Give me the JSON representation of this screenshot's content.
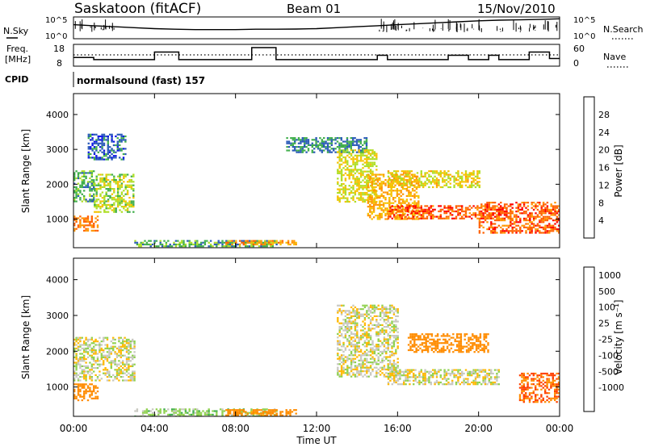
{
  "header": {
    "station": "Saskatoon (fitACF)",
    "beam": "Beam 01",
    "date": "15/Nov/2010"
  },
  "noise_panel": {
    "left_label": "N.Sky",
    "right_label": "N.Search",
    "left_ticks": [
      "10^5",
      "10^0"
    ],
    "right_ticks": [
      "10^5",
      "10^0"
    ]
  },
  "freq_panel": {
    "left_label_1": "Freq.",
    "left_label_2": "[MHz]",
    "right_label": "Nave",
    "left_ticks": [
      "18",
      "8"
    ],
    "right_ticks": [
      "60",
      "0"
    ]
  },
  "cpid": {
    "label": "CPID",
    "program": "normalsound (fast) 157"
  },
  "power_colorbar": {
    "title": "Power [dB]",
    "ticks": [
      "28",
      "24",
      "20",
      "16",
      "12",
      "8",
      "4"
    ],
    "colors": [
      "#ff0000",
      "#ff6000",
      "#ff9600",
      "#f5c200",
      "#aede25",
      "#3fae4b",
      "#2a5ab8",
      "#0a14e6"
    ]
  },
  "velocity_colorbar": {
    "title": "Velocity [m s⁻¹]",
    "ticks": [
      "1000",
      "500",
      "100",
      "25",
      "-25",
      "-100",
      "-500",
      "-1000"
    ],
    "colors": [
      "#1f3cb0",
      "#2e8b57",
      "#3fae4b",
      "#8fd14f",
      "#c8c8c0",
      "#ffb800",
      "#ff8c00",
      "#ff4000",
      "#ff0000"
    ]
  },
  "chart_data": [
    {
      "type": "heatmap",
      "name": "Power",
      "ylabel": "Slant Range [km]",
      "xlabel": "Time UT",
      "x_ticks": [
        "00:00",
        "04:00",
        "08:00",
        "12:00",
        "16:00",
        "20:00",
        "00:00"
      ],
      "y_ticks": [
        "1000",
        "2000",
        "3000",
        "4000"
      ],
      "xlim_hours": [
        0,
        24
      ],
      "ylim_km": [
        180,
        4600
      ],
      "regions": [
        {
          "t0": 0.0,
          "t1": 1.2,
          "r0": 650,
          "r1": 1100,
          "dB": 24
        },
        {
          "t0": 0.0,
          "t1": 1.0,
          "r0": 1500,
          "r1": 2400,
          "dB": 10
        },
        {
          "t0": 1.0,
          "t1": 3.0,
          "r0": 1200,
          "r1": 2300,
          "dB": 14
        },
        {
          "t0": 0.7,
          "t1": 2.6,
          "r0": 2700,
          "r1": 3450,
          "dB": 6
        },
        {
          "t0": 3.0,
          "t1": 10.0,
          "r0": 200,
          "r1": 400,
          "dB": 10
        },
        {
          "t0": 7.5,
          "t1": 11.0,
          "r0": 250,
          "r1": 400,
          "dB": 22
        },
        {
          "t0": 10.5,
          "t1": 14.5,
          "r0": 2900,
          "r1": 3350,
          "dB": 8
        },
        {
          "t0": 13.0,
          "t1": 15.0,
          "r0": 1500,
          "r1": 3000,
          "dB": 16
        },
        {
          "t0": 14.5,
          "t1": 17.0,
          "r0": 1000,
          "r1": 2300,
          "dB": 20
        },
        {
          "t0": 15.5,
          "t1": 21.5,
          "r0": 1000,
          "r1": 1400,
          "dB": 27
        },
        {
          "t0": 15.5,
          "t1": 20.0,
          "r0": 1900,
          "r1": 2400,
          "dB": 17
        },
        {
          "t0": 20.0,
          "t1": 24.0,
          "r0": 600,
          "r1": 1500,
          "dB": 26
        }
      ]
    },
    {
      "type": "heatmap",
      "name": "Velocity",
      "ylabel": "Slant Range [km]",
      "xlabel": "Time UT",
      "x_ticks": [
        "00:00",
        "04:00",
        "08:00",
        "12:00",
        "16:00",
        "20:00",
        "00:00"
      ],
      "y_ticks": [
        "1000",
        "2000",
        "3000",
        "4000"
      ],
      "xlim_hours": [
        0,
        24
      ],
      "ylim_km": [
        180,
        4600
      ],
      "regions": [
        {
          "t0": 0.0,
          "t1": 1.2,
          "r0": 650,
          "r1": 1100,
          "vel": -200
        },
        {
          "t0": 0.0,
          "t1": 3.0,
          "r0": 1200,
          "r1": 2400,
          "vel": 0
        },
        {
          "t0": 3.0,
          "t1": 10.0,
          "r0": 200,
          "r1": 400,
          "vel": 60
        },
        {
          "t0": 7.5,
          "t1": 11.0,
          "r0": 220,
          "r1": 380,
          "vel": -150
        },
        {
          "t0": 13.0,
          "t1": 16.0,
          "r0": 1300,
          "r1": 3300,
          "vel": 0
        },
        {
          "t0": 15.5,
          "t1": 21.0,
          "r0": 1100,
          "r1": 1500,
          "vel": 0
        },
        {
          "t0": 16.5,
          "t1": 20.5,
          "r0": 2000,
          "r1": 2500,
          "vel": -400
        },
        {
          "t0": 22.0,
          "t1": 24.0,
          "r0": 600,
          "r1": 1400,
          "vel": -500
        }
      ]
    }
  ],
  "noise_trace": {
    "time_hours": [
      0,
      1,
      2,
      3,
      4,
      5,
      6,
      7,
      8,
      9,
      10,
      11,
      12,
      13,
      14,
      15,
      16,
      17,
      18,
      19,
      20,
      21,
      22,
      23,
      24
    ],
    "sky_level": [
      0.55,
      0.5,
      0.45,
      0.4,
      0.35,
      0.32,
      0.3,
      0.3,
      0.3,
      0.32,
      0.32,
      0.33,
      0.35,
      0.4,
      0.45,
      0.5,
      0.55,
      0.6,
      0.65,
      0.7,
      0.75,
      0.78,
      0.8,
      0.82,
      0.85
    ]
  },
  "freq_trace": {
    "time_hours": [
      0,
      1.0,
      1.0,
      4.0,
      4.0,
      5.2,
      5.2,
      8.8,
      8.8,
      10.0,
      10.0,
      15.0,
      15.0,
      15.5,
      15.5,
      18.5,
      18.5,
      19.5,
      19.5,
      20.5,
      20.5,
      21.0,
      21.0,
      22.5,
      22.5,
      23.5,
      23.5,
      24
    ],
    "freq_mhz": [
      12,
      12,
      11,
      11,
      14.5,
      14.5,
      11,
      11,
      16.5,
      16.5,
      11,
      11,
      13,
      13,
      11,
      11,
      13,
      13,
      11,
      11,
      13,
      13,
      11,
      11,
      14.5,
      14.5,
      11.5,
      11.5
    ],
    "nave_dotted": 40
  }
}
